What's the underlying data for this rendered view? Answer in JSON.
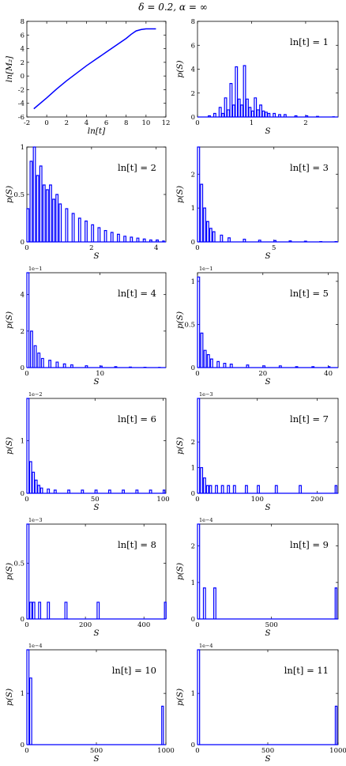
{
  "figure_title": "δ = 0.2, α = ∞",
  "chart_data": [
    {
      "type": "line",
      "xlabel": "ln[t]",
      "ylabel": "ln[M₂]",
      "xlim": [
        -2,
        12
      ],
      "ylim": [
        -6,
        8
      ],
      "xticks": [
        -2,
        0,
        2,
        4,
        6,
        8,
        10,
        12
      ],
      "yticks": [
        -6,
        -4,
        -2,
        0,
        2,
        4,
        6,
        8
      ],
      "color": "#0000ff",
      "x": [
        -1.3,
        0,
        1,
        2,
        3,
        4,
        5,
        6,
        7,
        8,
        8.5,
        9,
        9.5,
        10,
        10.5,
        11
      ],
      "y": [
        -4.8,
        -3.2,
        -1.9,
        -0.7,
        0.4,
        1.5,
        2.5,
        3.5,
        4.5,
        5.5,
        6.1,
        6.6,
        6.8,
        6.9,
        6.9,
        6.9
      ]
    },
    {
      "type": "step",
      "label": "ln[t] = 1",
      "xlabel": "S",
      "ylabel": "p(S)",
      "xlim": [
        0,
        2.6
      ],
      "ylim": [
        0,
        8
      ],
      "xticks": [
        0,
        1,
        2
      ],
      "yticks": [
        0,
        2,
        4,
        6,
        8
      ],
      "x": [
        0.2,
        0.3,
        0.4,
        0.45,
        0.5,
        0.55,
        0.6,
        0.65,
        0.7,
        0.75,
        0.8,
        0.85,
        0.9,
        0.95,
        1.0,
        1.05,
        1.1,
        1.15,
        1.2,
        1.25,
        1.3,
        1.4,
        1.5,
        1.6,
        1.8,
        2.0,
        2.2,
        2.5
      ],
      "y": [
        0.1,
        0.3,
        0.8,
        0.3,
        1.6,
        0.6,
        2.8,
        1.0,
        4.2,
        1.5,
        1.0,
        4.3,
        1.5,
        0.8,
        0.5,
        1.6,
        0.6,
        1.0,
        0.5,
        0.4,
        0.3,
        0.3,
        0.2,
        0.2,
        0.1,
        0.1,
        0.05,
        0.02
      ]
    },
    {
      "type": "step",
      "label": "ln[t] = 2",
      "xlabel": "S",
      "ylabel": "p(S)",
      "xlim": [
        0,
        4.3
      ],
      "ylim": [
        0,
        1.0
      ],
      "xticks": [
        0,
        2,
        4
      ],
      "yticks": [
        0,
        0.5,
        1.0
      ],
      "x": [
        0.0,
        0.1,
        0.2,
        0.3,
        0.4,
        0.5,
        0.6,
        0.7,
        0.8,
        0.9,
        1.0,
        1.2,
        1.4,
        1.6,
        1.8,
        2.0,
        2.2,
        2.4,
        2.6,
        2.8,
        3.0,
        3.2,
        3.4,
        3.6,
        3.8,
        4.0,
        4.2
      ],
      "y": [
        0.35,
        0.85,
        1.0,
        0.7,
        0.8,
        0.6,
        0.55,
        0.6,
        0.45,
        0.5,
        0.4,
        0.35,
        0.3,
        0.25,
        0.22,
        0.18,
        0.15,
        0.12,
        0.1,
        0.08,
        0.06,
        0.05,
        0.04,
        0.03,
        0.02,
        0.02,
        0.01
      ]
    },
    {
      "type": "step",
      "label": "ln[t] = 3",
      "xlabel": "S",
      "ylabel": "p(S)",
      "xlim": [
        0,
        9.2
      ],
      "ylim": [
        0,
        2.8
      ],
      "xticks": [
        0,
        5
      ],
      "yticks": [
        0,
        1,
        2
      ],
      "x": [
        0.0,
        0.2,
        0.4,
        0.6,
        0.8,
        1.0,
        1.5,
        2.0,
        3.0,
        4.0,
        5.0,
        6.0,
        7.0,
        8.0,
        9.0
      ],
      "y": [
        2.8,
        1.7,
        1.0,
        0.6,
        0.4,
        0.3,
        0.2,
        0.12,
        0.08,
        0.05,
        0.04,
        0.03,
        0.02,
        0.01,
        0.01
      ]
    },
    {
      "type": "step",
      "label": "ln[t] = 4",
      "xlabel": "S",
      "ylabel": "p(S)",
      "exponent": "1e−1",
      "xlim": [
        0,
        19
      ],
      "ylim": [
        0,
        5.2
      ],
      "xticks": [
        0,
        10
      ],
      "yticks": [
        0,
        2,
        4
      ],
      "x": [
        0.0,
        0.5,
        1.0,
        1.5,
        2.0,
        3.0,
        4.0,
        5.0,
        6.0,
        8.0,
        10.0,
        12.0,
        14.0,
        16.0,
        18.0
      ],
      "y": [
        5.2,
        2.0,
        1.2,
        0.8,
        0.5,
        0.4,
        0.3,
        0.2,
        0.15,
        0.1,
        0.08,
        0.05,
        0.03,
        0.02,
        0.01
      ]
    },
    {
      "type": "step",
      "label": "ln[t] = 5",
      "xlabel": "S",
      "ylabel": "p(S)",
      "exponent": "1e−1",
      "xlim": [
        0,
        43
      ],
      "ylim": [
        0,
        1.1
      ],
      "xticks": [
        0,
        20,
        40
      ],
      "yticks": [
        0,
        0.5,
        1.0
      ],
      "x": [
        0,
        1,
        2,
        3,
        4,
        6,
        8,
        10,
        15,
        20,
        25,
        30,
        35,
        40
      ],
      "y": [
        1.05,
        0.4,
        0.2,
        0.15,
        0.1,
        0.07,
        0.05,
        0.04,
        0.03,
        0.02,
        0.02,
        0.01,
        0.01,
        0.01
      ]
    },
    {
      "type": "step",
      "label": "ln[t] = 6",
      "xlabel": "S",
      "ylabel": "p(S)",
      "exponent": "1e−2",
      "xlim": [
        0,
        102
      ],
      "ylim": [
        0,
        1.8
      ],
      "xticks": [
        0,
        50,
        100
      ],
      "yticks": [
        0,
        1
      ],
      "x": [
        0,
        2,
        4,
        6,
        8,
        10,
        15,
        20,
        30,
        40,
        50,
        60,
        70,
        80,
        90,
        100
      ],
      "y": [
        1.8,
        0.6,
        0.4,
        0.25,
        0.15,
        0.1,
        0.08,
        0.06,
        0.06,
        0.06,
        0.06,
        0.06,
        0.06,
        0.06,
        0.06,
        0.06
      ]
    },
    {
      "type": "step",
      "label": "ln[t] = 7",
      "xlabel": "S",
      "ylabel": "p(S)",
      "exponent": "1e−3",
      "xlim": [
        0,
        235
      ],
      "ylim": [
        0,
        3.7
      ],
      "xticks": [
        0,
        100,
        200
      ],
      "yticks": [
        0,
        1,
        2
      ],
      "x": [
        0,
        5,
        10,
        15,
        20,
        30,
        40,
        50,
        60,
        80,
        100,
        130,
        170,
        230
      ],
      "y": [
        3.7,
        1.0,
        0.6,
        0.3,
        0.3,
        0.3,
        0.3,
        0.3,
        0.3,
        0.3,
        0.3,
        0.3,
        0.3,
        0.3
      ]
    },
    {
      "type": "step",
      "label": "ln[t] = 8",
      "xlabel": "S",
      "ylabel": "p(S)",
      "exponent": "1e−3",
      "xlim": [
        0,
        475
      ],
      "ylim": [
        0,
        0.85
      ],
      "xticks": [
        0,
        200,
        400
      ],
      "yticks": [
        0,
        0.5
      ],
      "x": [
        0,
        10,
        20,
        40,
        70,
        130,
        240,
        470
      ],
      "y": [
        0.85,
        0.15,
        0.15,
        0.15,
        0.15,
        0.15,
        0.15,
        0.15
      ]
    },
    {
      "type": "step",
      "label": "ln[t] = 9",
      "xlabel": "S",
      "ylabel": "p(S)",
      "exponent": "1e−4",
      "xlim": [
        0,
        950
      ],
      "ylim": [
        0,
        2.6
      ],
      "xticks": [
        0,
        500
      ],
      "yticks": [
        0,
        1,
        2
      ],
      "x": [
        0,
        40,
        110,
        930
      ],
      "y": [
        2.6,
        0.85,
        0.85,
        0.85
      ]
    },
    {
      "type": "step",
      "label": "ln[t] = 10",
      "xlabel": "S",
      "ylabel": "p(S)",
      "exponent": "1e−4",
      "xlim": [
        0,
        1000
      ],
      "ylim": [
        0,
        1.85
      ],
      "xticks": [
        0,
        500,
        1000
      ],
      "yticks": [
        0,
        1
      ],
      "x": [
        0,
        20,
        970
      ],
      "y": [
        1.85,
        1.3,
        0.75
      ]
    },
    {
      "type": "step",
      "label": "ln[t] = 11",
      "xlabel": "S",
      "ylabel": "p(S)",
      "exponent": "1e−4",
      "xlim": [
        0,
        1000
      ],
      "ylim": [
        0,
        1.85
      ],
      "xticks": [
        0,
        500,
        1000
      ],
      "yticks": [
        0,
        1
      ],
      "x": [
        0,
        980
      ],
      "y": [
        1.85,
        0.75
      ]
    }
  ]
}
